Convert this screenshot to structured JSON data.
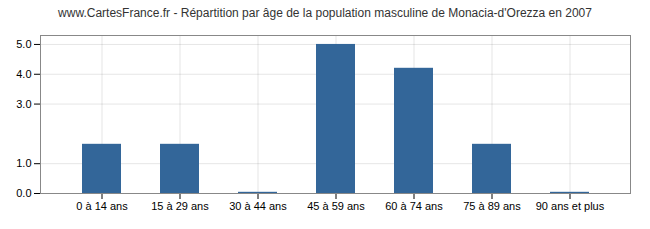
{
  "chart_data": {
    "type": "bar",
    "title": "www.CartesFrance.fr - Répartition par âge de la population masculine de Monacia-d'Orezza en 2007",
    "categories": [
      "0 à 14 ans",
      "15 à 29 ans",
      "30 à 44 ans",
      "45 à 59 ans",
      "60 à 74 ans",
      "75 à 89 ans",
      "90 ans et plus"
    ],
    "values": [
      1.65,
      1.65,
      0.04,
      5.0,
      4.2,
      1.65,
      0.04
    ],
    "color": "#336699",
    "ylim": [
      0,
      5.3
    ],
    "yticks": [
      0,
      1,
      3,
      4,
      5
    ],
    "grid": true
  }
}
